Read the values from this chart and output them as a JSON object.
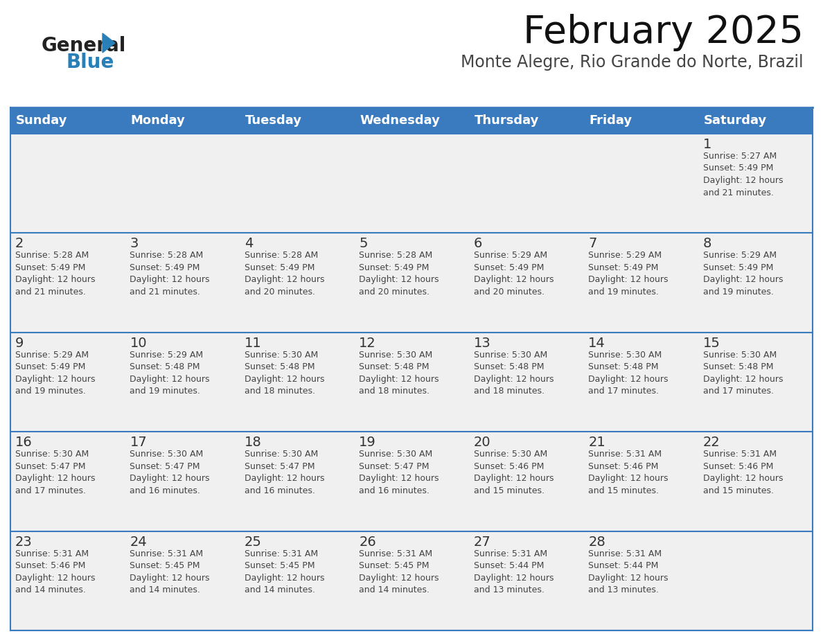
{
  "title": "February 2025",
  "subtitle": "Monte Alegre, Rio Grande do Norte, Brazil",
  "header_bg": "#3a7abf",
  "header_text": "#ffffff",
  "cell_bg": "#f0f0f0",
  "border_color": "#3a7abf",
  "text_color": "#444444",
  "day_num_color": "#333333",
  "days_of_week": [
    "Sunday",
    "Monday",
    "Tuesday",
    "Wednesday",
    "Thursday",
    "Friday",
    "Saturday"
  ],
  "weeks": [
    [
      {
        "day": "",
        "info": ""
      },
      {
        "day": "",
        "info": ""
      },
      {
        "day": "",
        "info": ""
      },
      {
        "day": "",
        "info": ""
      },
      {
        "day": "",
        "info": ""
      },
      {
        "day": "",
        "info": ""
      },
      {
        "day": "1",
        "info": "Sunrise: 5:27 AM\nSunset: 5:49 PM\nDaylight: 12 hours\nand 21 minutes."
      }
    ],
    [
      {
        "day": "2",
        "info": "Sunrise: 5:28 AM\nSunset: 5:49 PM\nDaylight: 12 hours\nand 21 minutes."
      },
      {
        "day": "3",
        "info": "Sunrise: 5:28 AM\nSunset: 5:49 PM\nDaylight: 12 hours\nand 21 minutes."
      },
      {
        "day": "4",
        "info": "Sunrise: 5:28 AM\nSunset: 5:49 PM\nDaylight: 12 hours\nand 20 minutes."
      },
      {
        "day": "5",
        "info": "Sunrise: 5:28 AM\nSunset: 5:49 PM\nDaylight: 12 hours\nand 20 minutes."
      },
      {
        "day": "6",
        "info": "Sunrise: 5:29 AM\nSunset: 5:49 PM\nDaylight: 12 hours\nand 20 minutes."
      },
      {
        "day": "7",
        "info": "Sunrise: 5:29 AM\nSunset: 5:49 PM\nDaylight: 12 hours\nand 19 minutes."
      },
      {
        "day": "8",
        "info": "Sunrise: 5:29 AM\nSunset: 5:49 PM\nDaylight: 12 hours\nand 19 minutes."
      }
    ],
    [
      {
        "day": "9",
        "info": "Sunrise: 5:29 AM\nSunset: 5:49 PM\nDaylight: 12 hours\nand 19 minutes."
      },
      {
        "day": "10",
        "info": "Sunrise: 5:29 AM\nSunset: 5:48 PM\nDaylight: 12 hours\nand 19 minutes."
      },
      {
        "day": "11",
        "info": "Sunrise: 5:30 AM\nSunset: 5:48 PM\nDaylight: 12 hours\nand 18 minutes."
      },
      {
        "day": "12",
        "info": "Sunrise: 5:30 AM\nSunset: 5:48 PM\nDaylight: 12 hours\nand 18 minutes."
      },
      {
        "day": "13",
        "info": "Sunrise: 5:30 AM\nSunset: 5:48 PM\nDaylight: 12 hours\nand 18 minutes."
      },
      {
        "day": "14",
        "info": "Sunrise: 5:30 AM\nSunset: 5:48 PM\nDaylight: 12 hours\nand 17 minutes."
      },
      {
        "day": "15",
        "info": "Sunrise: 5:30 AM\nSunset: 5:48 PM\nDaylight: 12 hours\nand 17 minutes."
      }
    ],
    [
      {
        "day": "16",
        "info": "Sunrise: 5:30 AM\nSunset: 5:47 PM\nDaylight: 12 hours\nand 17 minutes."
      },
      {
        "day": "17",
        "info": "Sunrise: 5:30 AM\nSunset: 5:47 PM\nDaylight: 12 hours\nand 16 minutes."
      },
      {
        "day": "18",
        "info": "Sunrise: 5:30 AM\nSunset: 5:47 PM\nDaylight: 12 hours\nand 16 minutes."
      },
      {
        "day": "19",
        "info": "Sunrise: 5:30 AM\nSunset: 5:47 PM\nDaylight: 12 hours\nand 16 minutes."
      },
      {
        "day": "20",
        "info": "Sunrise: 5:30 AM\nSunset: 5:46 PM\nDaylight: 12 hours\nand 15 minutes."
      },
      {
        "day": "21",
        "info": "Sunrise: 5:31 AM\nSunset: 5:46 PM\nDaylight: 12 hours\nand 15 minutes."
      },
      {
        "day": "22",
        "info": "Sunrise: 5:31 AM\nSunset: 5:46 PM\nDaylight: 12 hours\nand 15 minutes."
      }
    ],
    [
      {
        "day": "23",
        "info": "Sunrise: 5:31 AM\nSunset: 5:46 PM\nDaylight: 12 hours\nand 14 minutes."
      },
      {
        "day": "24",
        "info": "Sunrise: 5:31 AM\nSunset: 5:45 PM\nDaylight: 12 hours\nand 14 minutes."
      },
      {
        "day": "25",
        "info": "Sunrise: 5:31 AM\nSunset: 5:45 PM\nDaylight: 12 hours\nand 14 minutes."
      },
      {
        "day": "26",
        "info": "Sunrise: 5:31 AM\nSunset: 5:45 PM\nDaylight: 12 hours\nand 14 minutes."
      },
      {
        "day": "27",
        "info": "Sunrise: 5:31 AM\nSunset: 5:44 PM\nDaylight: 12 hours\nand 13 minutes."
      },
      {
        "day": "28",
        "info": "Sunrise: 5:31 AM\nSunset: 5:44 PM\nDaylight: 12 hours\nand 13 minutes."
      },
      {
        "day": "",
        "info": ""
      }
    ]
  ],
  "logo_general_color": "#222222",
  "logo_blue_color": "#2980b9",
  "logo_triangle_color": "#2980b9",
  "title_fontsize": 40,
  "subtitle_fontsize": 17,
  "header_fontsize": 13,
  "day_num_fontsize": 14,
  "info_fontsize": 9
}
